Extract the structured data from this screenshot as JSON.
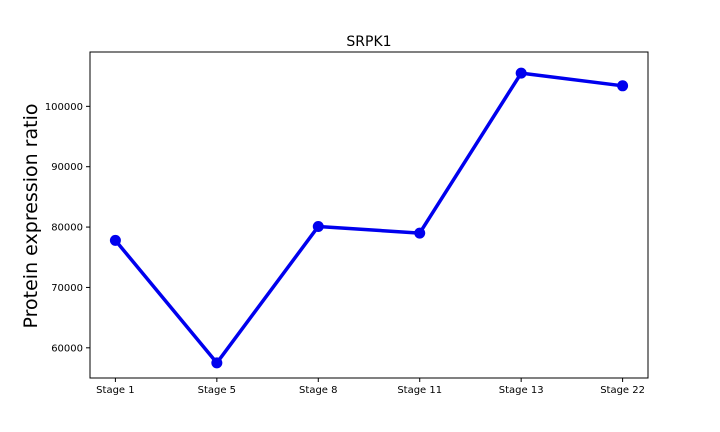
{
  "chart_data": {
    "type": "line",
    "title": "SRPK1",
    "xlabel": "",
    "ylabel": "Protein expression ratio",
    "categories": [
      "Stage 1",
      "Stage 5",
      "Stage 8",
      "Stage 11",
      "Stage 13",
      "Stage 22"
    ],
    "series": [
      {
        "values": [
          77800,
          57500,
          80100,
          79000,
          105500,
          103400
        ],
        "color": "#0000ee"
      }
    ],
    "ylim": [
      55000,
      109000
    ],
    "yticks": [
      60000,
      70000,
      80000,
      90000,
      100000
    ],
    "ytick_labels": [
      "60000",
      "70000",
      "80000",
      "90000",
      "100000"
    ],
    "grid": false,
    "legend": "none"
  }
}
